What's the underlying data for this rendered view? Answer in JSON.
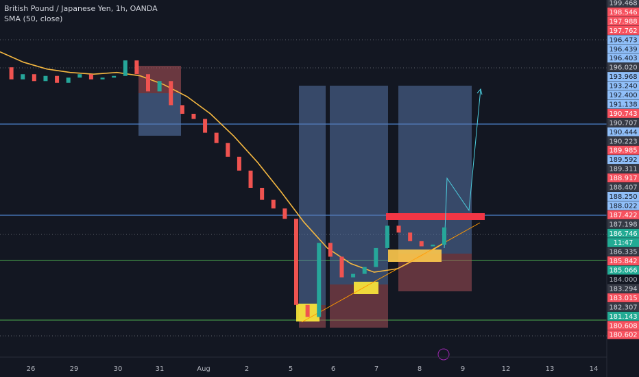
{
  "header": {
    "title": "British Pound / Japanese Yen, 1h, OANDA",
    "indicator": "SMA (50, close)"
  },
  "price_axis": {
    "labels": [
      {
        "text": "199.468",
        "style": "dark"
      },
      {
        "text": "198.546",
        "style": "red"
      },
      {
        "text": "197.988",
        "style": "red"
      },
      {
        "text": "197.762",
        "style": "red"
      },
      {
        "text": "196.473",
        "style": "blue"
      },
      {
        "text": "196.439",
        "style": "blue"
      },
      {
        "text": "196.403",
        "style": "blue"
      },
      {
        "text": "196.020",
        "style": "dark"
      },
      {
        "text": "193.968",
        "style": "blue"
      },
      {
        "text": "193.240",
        "style": "blue"
      },
      {
        "text": "192.400",
        "style": "blue"
      },
      {
        "text": "191.138",
        "style": "blue"
      },
      {
        "text": "190.743",
        "style": "red"
      },
      {
        "text": "190.707",
        "style": "dark"
      },
      {
        "text": "190.444",
        "style": "blue"
      },
      {
        "text": "190.223",
        "style": "dark"
      },
      {
        "text": "189.985",
        "style": "red"
      },
      {
        "text": "189.592",
        "style": "blue"
      },
      {
        "text": "189.311",
        "style": "dark"
      },
      {
        "text": "188.917",
        "style": "red"
      },
      {
        "text": "188.407",
        "style": "dark"
      },
      {
        "text": "188.250",
        "style": "blue"
      },
      {
        "text": "188.022",
        "style": "blue"
      },
      {
        "text": "187.422",
        "style": "red"
      },
      {
        "text": "187.198",
        "style": "dark"
      },
      {
        "text": "186.746",
        "style": "green"
      },
      {
        "text": "11:47",
        "style": "green"
      },
      {
        "text": "186.335",
        "style": "dark"
      },
      {
        "text": "185.842",
        "style": "red"
      },
      {
        "text": "185.066",
        "style": "green"
      },
      {
        "text": "184.000",
        "style": "plain"
      },
      {
        "text": "183.294",
        "style": "dark"
      },
      {
        "text": "183.015",
        "style": "red"
      },
      {
        "text": "182.307",
        "style": "dark"
      },
      {
        "text": "181.143",
        "style": "green"
      },
      {
        "text": "180.608",
        "style": "red"
      },
      {
        "text": "180.602",
        "style": "red"
      }
    ]
  },
  "time_axis": {
    "labels": [
      "26",
      "29",
      "30",
      "31",
      "Aug",
      "2",
      "5",
      "6",
      "7",
      "8",
      "9",
      "12",
      "13",
      "14"
    ]
  },
  "price_range": [
    180.4,
    197.6
  ],
  "closes": [
    196.0,
    195.3,
    195.6,
    195.2,
    195.5,
    195.1,
    195.4,
    195.6,
    195.3,
    195.4,
    195.5,
    196.4,
    195.6,
    194.6,
    195.2,
    193.8,
    193.3,
    193.0,
    192.2,
    191.6,
    190.8,
    190.0,
    189.0,
    188.3,
    187.8,
    187.2,
    182.2,
    181.5,
    185.8,
    185.0,
    183.8,
    184.0,
    184.4,
    185.5,
    186.8,
    186.4,
    185.9,
    185.6,
    185.7,
    186.7
  ],
  "sma": [
    196.9,
    196.3,
    195.9,
    195.7,
    195.6,
    195.7,
    195.5,
    195.0,
    194.3,
    193.3,
    192.0,
    190.5,
    188.8,
    187.0,
    185.5,
    184.6,
    184.1,
    184.3,
    185.0,
    185.8
  ]
}
